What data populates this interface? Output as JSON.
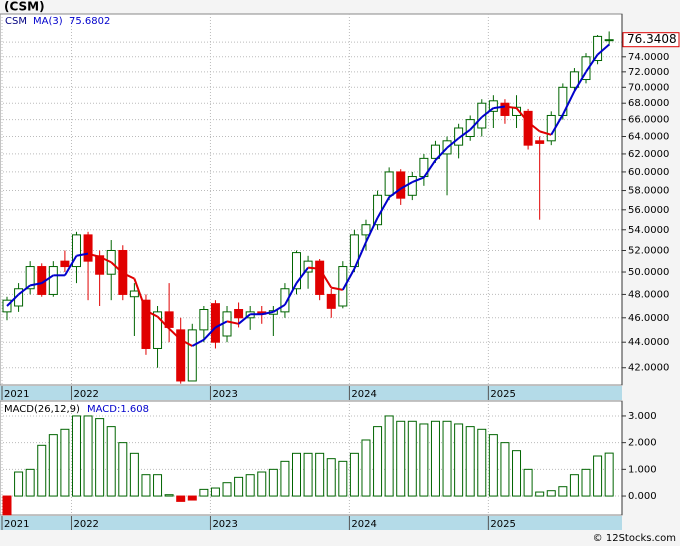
{
  "chart_data": [
    {
      "type": "candlestick",
      "title": "(CSM)",
      "categories": [
        "2021",
        null,
        null,
        null,
        null,
        null,
        "2022",
        null,
        null,
        null,
        null,
        null,
        null,
        null,
        null,
        null,
        null,
        null,
        "2023",
        null,
        null,
        null,
        null,
        null,
        null,
        null,
        null,
        null,
        null,
        null,
        "2024",
        null,
        null,
        null,
        null,
        null,
        null,
        null,
        null,
        null,
        null,
        null,
        "2025",
        null,
        null,
        null,
        null,
        null,
        null,
        null,
        null,
        null,
        null
      ],
      "series": [
        {
          "name": "CSM",
          "up_color": "#006400",
          "down_color": "#e00000",
          "open": [
            46.5,
            47,
            48.5,
            50.5,
            48,
            51,
            50.5,
            53.5,
            51.5,
            49.8,
            52,
            47.8,
            47.5,
            43.5,
            46.5,
            45,
            41,
            45,
            47.2,
            44.5,
            46.7,
            46,
            46.5,
            46.3,
            46.5,
            48.5,
            50,
            51,
            48,
            47,
            50.5,
            53.5,
            54.5,
            57.5,
            60,
            57.5,
            59.5,
            61.5,
            62,
            63,
            64,
            65,
            67,
            68,
            66.5,
            67,
            63.5,
            63.5,
            66.5,
            70,
            71,
            73.5,
            76.3
          ],
          "high": [
            47.8,
            49,
            51,
            50.8,
            51,
            52,
            53.8,
            53.8,
            52,
            53,
            52.5,
            49,
            48,
            47,
            49,
            46,
            45.5,
            47,
            47.5,
            47,
            47.3,
            47,
            47,
            47,
            49,
            52,
            51.5,
            51.2,
            48.5,
            51,
            54,
            55,
            58,
            60.5,
            60.3,
            60,
            62,
            63.5,
            64,
            65.5,
            66.5,
            68.5,
            69,
            68.5,
            69,
            67.3,
            64,
            67,
            70.5,
            72.5,
            74.5,
            77,
            77.5
          ],
          "low": [
            45.8,
            46.5,
            48,
            47.8,
            47.8,
            50,
            49,
            47.5,
            47,
            47.5,
            47.5,
            44.5,
            43,
            42,
            44,
            40.8,
            41,
            44,
            43.5,
            44,
            45.2,
            45,
            45.5,
            44.5,
            46,
            48,
            48.5,
            47.5,
            46,
            46.8,
            50,
            52,
            54,
            57,
            56.5,
            57,
            58.5,
            61,
            57.5,
            61.5,
            63.5,
            64,
            65,
            65.5,
            65,
            62.5,
            55,
            63,
            66,
            69.5,
            70.5,
            73,
            75.5
          ],
          "close": [
            47.5,
            48.5,
            50.5,
            48,
            50.5,
            50.5,
            53.5,
            51,
            49.8,
            52,
            48,
            48.3,
            43.5,
            46.5,
            45.2,
            41,
            45,
            46.7,
            44,
            46.5,
            46,
            46.5,
            46.3,
            46.6,
            48.5,
            51.8,
            51,
            48,
            46.8,
            50.5,
            53.5,
            54.5,
            57.5,
            60,
            57.2,
            59.5,
            61.5,
            63,
            63.5,
            65,
            66,
            68,
            68.3,
            66.5,
            67.5,
            63,
            63.2,
            66.5,
            70,
            72,
            74,
            76.8,
            76.3408
          ],
          "last_label": "76.3408"
        },
        {
          "name": "MA(3)",
          "up_color": "#0000cc",
          "down_color": "#e00000",
          "value_label": "75.6802",
          "values": [
            47,
            48,
            48.8,
            49,
            49.7,
            49.7,
            51.5,
            51.7,
            51.4,
            50.9,
            49.9,
            49.4,
            46.6,
            46.1,
            45.1,
            44.2,
            43.7,
            44.2,
            45.2,
            45.7,
            45.5,
            46.3,
            46.3,
            46.5,
            47.1,
            49,
            50.4,
            50.3,
            48.6,
            48.4,
            50.3,
            52.8,
            55.2,
            57.3,
            58.2,
            58.9,
            59.4,
            61.3,
            62.7,
            63.8,
            64.8,
            66.3,
            67.4,
            67.6,
            67.4,
            65.7,
            64.6,
            64.2,
            66.6,
            69.5,
            72,
            74.3,
            75.6802
          ]
        }
      ],
      "log_scale": true,
      "grid": true,
      "ylim": [
        40.7,
        80
      ],
      "yticks": [
        {
          "value": 42,
          "label": "42.0000"
        },
        {
          "value": 44,
          "label": "44.0000"
        },
        {
          "value": 46,
          "label": "46.0000"
        },
        {
          "value": 48,
          "label": "48.0000"
        },
        {
          "value": 50,
          "label": "50.0000"
        },
        {
          "value": 52,
          "label": "52.0000"
        },
        {
          "value": 54,
          "label": "54.0000"
        },
        {
          "value": 56,
          "label": "56.0000"
        },
        {
          "value": 58,
          "label": "58.0000"
        },
        {
          "value": 60,
          "label": "60.0000"
        },
        {
          "value": 62,
          "label": "62.0000"
        },
        {
          "value": 64,
          "label": "64.0000"
        },
        {
          "value": 66,
          "label": "66.0000"
        },
        {
          "value": 68,
          "label": "68.0000"
        },
        {
          "value": 70,
          "label": "70.0000"
        },
        {
          "value": 72,
          "label": "72.0000"
        },
        {
          "value": 74,
          "label": "74.0000"
        },
        {
          "value": 76,
          "label": "76.0000"
        }
      ]
    },
    {
      "type": "bar",
      "title": "MACD(26,12,9)",
      "categories": [
        "2021",
        null,
        null,
        null,
        null,
        null,
        "2022",
        null,
        null,
        null,
        null,
        null,
        null,
        null,
        null,
        null,
        null,
        null,
        "2023",
        null,
        null,
        null,
        null,
        null,
        null,
        null,
        null,
        null,
        null,
        null,
        "2024",
        null,
        null,
        null,
        null,
        null,
        null,
        null,
        null,
        null,
        null,
        null,
        "2025",
        null,
        null,
        null,
        null,
        null,
        null,
        null,
        null,
        null,
        null
      ],
      "series": [
        {
          "name": "MACD",
          "value_label": "MACD:1.608",
          "up_color": "#006400",
          "down_color": "#e00000",
          "values": [
            -0.7,
            0.9,
            1.0,
            1.9,
            2.3,
            2.5,
            3.0,
            3.0,
            2.9,
            2.6,
            2.0,
            1.6,
            0.8,
            0.8,
            0.05,
            -0.2,
            -0.15,
            0.25,
            0.3,
            0.5,
            0.7,
            0.8,
            0.9,
            1.0,
            1.3,
            1.6,
            1.6,
            1.6,
            1.4,
            1.3,
            1.6,
            2.1,
            2.6,
            3.0,
            2.8,
            2.8,
            2.7,
            2.8,
            2.8,
            2.7,
            2.6,
            2.5,
            2.3,
            2.0,
            1.7,
            1.0,
            0.15,
            0.2,
            0.35,
            0.8,
            1.0,
            1.5,
            1.608
          ]
        }
      ],
      "grid": true,
      "ylim": [
        -0.71,
        3.56
      ],
      "yticks": [
        {
          "value": 0,
          "label": "0.000"
        },
        {
          "value": 1,
          "label": "1.000"
        },
        {
          "value": 2,
          "label": "2.000"
        },
        {
          "value": 3,
          "label": "3.000"
        }
      ]
    }
  ],
  "footer": "© 12Stocks.com"
}
